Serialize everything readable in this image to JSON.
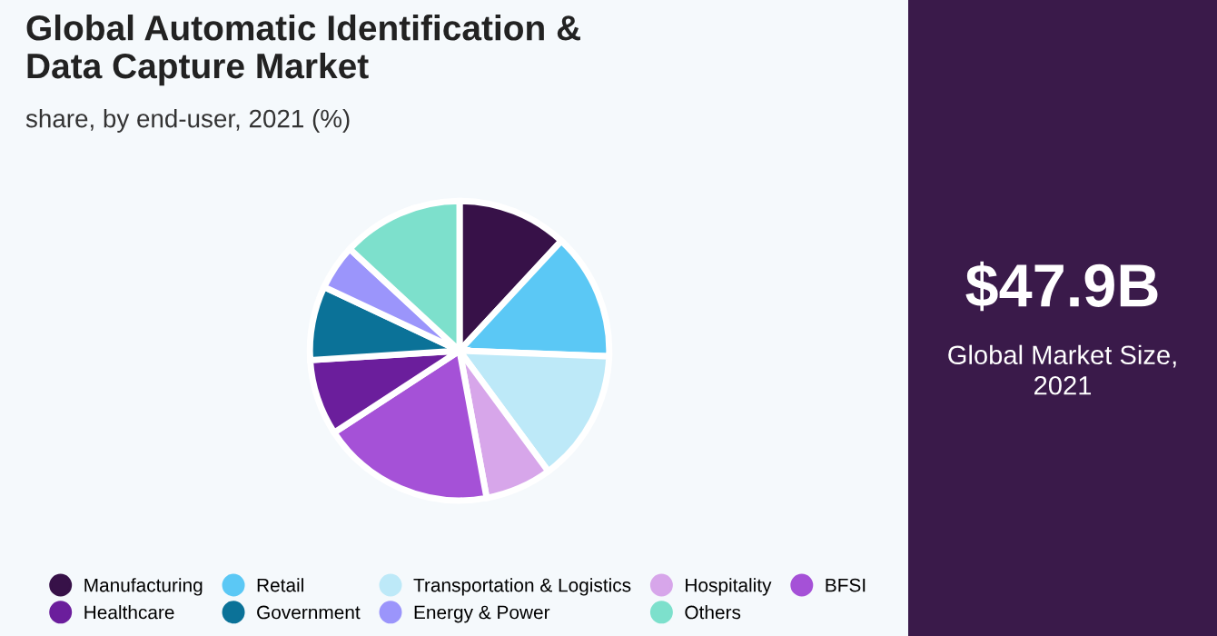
{
  "chart_data": {
    "type": "pie",
    "title": "Global Automatic Identification &\nData Capture Market",
    "subtitle": "share, by end-user, 2021 (%)",
    "categories": [
      "Manufacturing",
      "Retail",
      "Transportation & Logistics",
      "Hospitality",
      "BFSI",
      "Healthcare",
      "Government",
      "Energy & Power",
      "Others"
    ],
    "values": [
      11.9,
      13.7,
      14.3,
      7.2,
      18.7,
      8.2,
      8.0,
      4.9,
      13.1
    ],
    "colors": [
      "#371148",
      "#5bc8f5",
      "#bde9f8",
      "#d7a6ea",
      "#a551d7",
      "#6b1e9c",
      "#0b7298",
      "#9b95fb",
      "#7de0cc"
    ],
    "legend": "bottom",
    "annotations": [
      "$47.9B",
      "Global Market Size,\n2021"
    ]
  }
}
